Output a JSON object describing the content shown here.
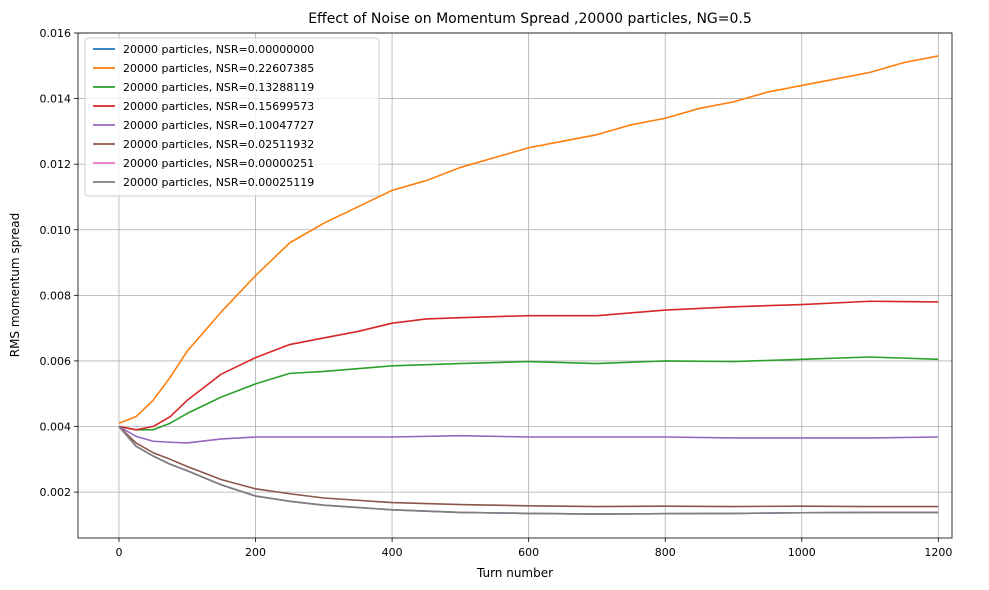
{
  "chart_data": {
    "type": "line",
    "title": "Effect of Noise on Momentum Spread ,20000 particles, NG=0.5",
    "xlabel": "Turn number",
    "ylabel": "RMS momentum spread",
    "xlim": [
      -60,
      1220
    ],
    "ylim": [
      0.0006,
      0.016
    ],
    "xticks": [
      0,
      200,
      400,
      600,
      800,
      1000,
      1200
    ],
    "yticks": [
      0.002,
      0.004,
      0.006,
      0.008,
      0.01,
      0.012,
      0.014,
      0.016
    ],
    "xtick_labels": [
      "0",
      "200",
      "400",
      "600",
      "800",
      "1000",
      "1200"
    ],
    "ytick_labels": [
      "0.002",
      "0.004",
      "0.006",
      "0.008",
      "0.010",
      "0.012",
      "0.014",
      "0.016"
    ],
    "grid": true,
    "legend_position": "top-left",
    "series": [
      {
        "name": "20000 particles, NSR=0.00000000",
        "color": "#1f77b4",
        "x": [
          0,
          25,
          50,
          75,
          100,
          150,
          200,
          250,
          300,
          400,
          500,
          600,
          700,
          800,
          900,
          1000,
          1100,
          1200
        ],
        "y": [
          0.004,
          0.0034,
          0.0031,
          0.00285,
          0.00265,
          0.00222,
          0.00188,
          0.00172,
          0.0016,
          0.00146,
          0.00138,
          0.00135,
          0.00133,
          0.00134,
          0.00135,
          0.00137,
          0.00138,
          0.00138
        ]
      },
      {
        "name": "20000 particles, NSR=0.22607385",
        "color": "#ff7f0e",
        "x": [
          0,
          25,
          50,
          75,
          100,
          150,
          200,
          250,
          300,
          350,
          400,
          450,
          500,
          550,
          600,
          650,
          700,
          750,
          800,
          850,
          900,
          950,
          1000,
          1050,
          1100,
          1150,
          1200
        ],
        "y": [
          0.0041,
          0.0043,
          0.0048,
          0.0055,
          0.0063,
          0.0075,
          0.0086,
          0.0096,
          0.0102,
          0.0107,
          0.0112,
          0.0115,
          0.0119,
          0.0122,
          0.0125,
          0.0127,
          0.0129,
          0.0132,
          0.0134,
          0.0137,
          0.0139,
          0.0142,
          0.0144,
          0.0146,
          0.0148,
          0.0151,
          0.0153
        ]
      },
      {
        "name": "20000 particles, NSR=0.13288119",
        "color": "#2ca02c",
        "x": [
          0,
          25,
          50,
          75,
          100,
          150,
          200,
          250,
          300,
          400,
          500,
          600,
          700,
          800,
          900,
          1000,
          1100,
          1200
        ],
        "y": [
          0.004,
          0.0039,
          0.0039,
          0.0041,
          0.0044,
          0.0049,
          0.0053,
          0.00562,
          0.00568,
          0.00585,
          0.00592,
          0.00598,
          0.00592,
          0.006,
          0.00598,
          0.00605,
          0.00612,
          0.00605
        ]
      },
      {
        "name": "20000 particles, NSR=0.15699573",
        "color": "#d62728",
        "x": [
          0,
          25,
          50,
          75,
          100,
          150,
          200,
          250,
          300,
          350,
          400,
          450,
          500,
          600,
          700,
          800,
          900,
          1000,
          1100,
          1200
        ],
        "y": [
          0.004,
          0.0039,
          0.004,
          0.0043,
          0.0048,
          0.0056,
          0.0061,
          0.0065,
          0.0067,
          0.0069,
          0.00715,
          0.00728,
          0.00732,
          0.00738,
          0.00738,
          0.00755,
          0.00765,
          0.00772,
          0.00782,
          0.0078
        ]
      },
      {
        "name": "20000 particles, NSR=0.10047727",
        "color": "#9467bd",
        "x": [
          0,
          25,
          50,
          75,
          100,
          150,
          200,
          300,
          400,
          500,
          600,
          700,
          800,
          900,
          1000,
          1100,
          1200
        ],
        "y": [
          0.004,
          0.0037,
          0.00355,
          0.00352,
          0.0035,
          0.00362,
          0.00368,
          0.00368,
          0.00368,
          0.00372,
          0.00368,
          0.00368,
          0.00368,
          0.00365,
          0.00365,
          0.00365,
          0.00368
        ]
      },
      {
        "name": "20000 particles, NSR=0.02511932",
        "color": "#8c564b",
        "x": [
          0,
          25,
          50,
          75,
          100,
          150,
          200,
          250,
          300,
          400,
          500,
          600,
          700,
          800,
          900,
          1000,
          1100,
          1200
        ],
        "y": [
          0.004,
          0.0035,
          0.0032,
          0.003,
          0.00278,
          0.00238,
          0.0021,
          0.00195,
          0.00182,
          0.00168,
          0.00162,
          0.00158,
          0.00156,
          0.00157,
          0.00156,
          0.00157,
          0.00156,
          0.00156
        ]
      },
      {
        "name": "20000 particles, NSR=0.00000251",
        "color": "#e377c2",
        "x": [
          0,
          25,
          50,
          75,
          100,
          150,
          200,
          250,
          300,
          400,
          500,
          600,
          700,
          800,
          900,
          1000,
          1100,
          1200
        ],
        "y": [
          0.004,
          0.0034,
          0.0031,
          0.00285,
          0.00265,
          0.00222,
          0.00188,
          0.00172,
          0.0016,
          0.00146,
          0.00138,
          0.00135,
          0.00133,
          0.00134,
          0.00135,
          0.00137,
          0.00138,
          0.00138
        ]
      },
      {
        "name": "20000 particles, NSR=0.00025119",
        "color": "#7f7f7f",
        "x": [
          0,
          25,
          50,
          75,
          100,
          150,
          200,
          250,
          300,
          400,
          500,
          600,
          700,
          800,
          900,
          1000,
          1100,
          1200
        ],
        "y": [
          0.004,
          0.0034,
          0.0031,
          0.00285,
          0.00265,
          0.00222,
          0.00188,
          0.00172,
          0.0016,
          0.00146,
          0.00138,
          0.00135,
          0.00133,
          0.00134,
          0.00135,
          0.00137,
          0.00138,
          0.00138
        ]
      }
    ]
  }
}
